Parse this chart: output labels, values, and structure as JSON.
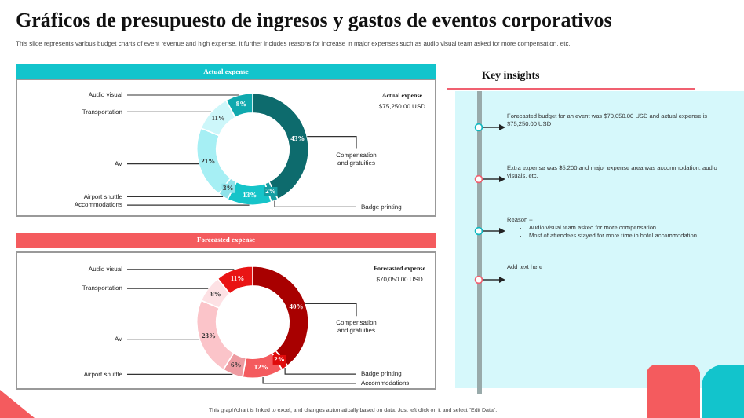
{
  "chart_data": [
    {
      "type": "donut",
      "title": "Gráficos de presupuesto de ingresos y gastos de eventos corporativos",
      "subtitle": "This slide represents various budget charts of event revenue and high expense. It further includes reasons for increase in major expenses such as audio visual team asked for more compensation, etc.",
      "legend_title": "Actual expense",
      "annotations": [
        "Actual expense",
        "$75,250.00 USD"
      ],
      "categories": [
        "Compensation and gratuities",
        "Badge printing",
        "Accommodations",
        "Airport shuttle",
        "AV",
        "Transportation",
        "Audio visual"
      ],
      "values": [
        43,
        2,
        13,
        3,
        21,
        11,
        8
      ],
      "value_labels": [
        "43%",
        "2%",
        "13%",
        "3%",
        "21%",
        "11%",
        "8%"
      ],
      "colors": [
        "#0d6b6d",
        "#159ea2",
        "#16c4c9",
        "#8fe3ea",
        "#a6eff4",
        "#cdf7fa",
        "#0fa9ae"
      ],
      "legend": false
    },
    {
      "type": "donut",
      "legend_title": "Forecasted expense",
      "annotations": [
        "Forecasted expense",
        "$70,050.00 USD",
        "This graph/chart is linked to excel, and changes automatically based on data. Just left click on it and select \"Edit Data\"."
      ],
      "categories": [
        "Compensation and gratuities",
        "Badge printing",
        "Accommodations",
        "Airport shuttle",
        "AV",
        "Transportation",
        "Audio visual"
      ],
      "values": [
        40,
        2,
        12,
        6,
        23,
        8,
        11
      ],
      "value_labels": [
        "40%",
        "2%",
        "12%",
        "6%",
        "23%",
        "8%",
        "11%"
      ],
      "colors": [
        "#a80000",
        "#e00b0b",
        "#f45b5e",
        "#ee9ba1",
        "#fbc4c9",
        "#fde1e4",
        "#e91414"
      ],
      "legend": false
    },
    {
      "type": "other",
      "title": "Key insights",
      "annotations": [
        "Forecasted budget for an event was $70,050.00 USD and actual expense is $75,250.00 USD",
        "Extra expense was $5,200 and major expense area was accommodation, audio visuals, etc.",
        "Reason –",
        "Audio visual team asked for more compensation",
        "Most of attendees stayed for more time in hotel accommodation",
        "Add text here"
      ]
    }
  ]
}
